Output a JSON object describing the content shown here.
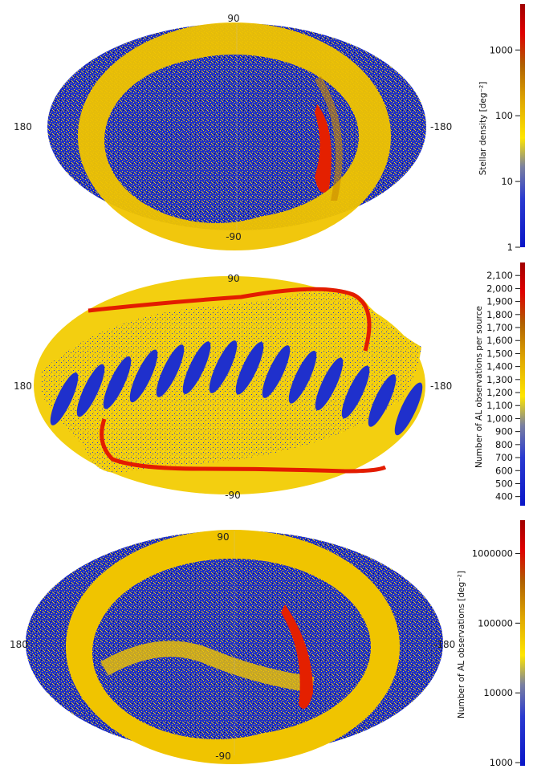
{
  "chart_data": [
    {
      "type": "heatmap",
      "projection": "mollweide",
      "lat_labels": {
        "top": "90",
        "bottom": "-90"
      },
      "lon_labels": {
        "left": "180",
        "right": "-180"
      },
      "colorbar": {
        "label": "Stellar density [deg⁻²]",
        "scale": "log",
        "range": [
          1,
          5000
        ],
        "ticks": [
          "1000",
          "100",
          "10",
          "1"
        ],
        "tick_values": [
          1000,
          100,
          10,
          1
        ],
        "colors": [
          "#0a16c8",
          "#7a80a0",
          "#ffe600",
          "#e0a800",
          "#b06000",
          "#e00000",
          "#a00000"
        ]
      },
      "features": {
        "background": "blue/yellow speckle",
        "ring": "yellow galactic-plane band",
        "hotspot": "red galactic centre"
      }
    },
    {
      "type": "heatmap",
      "projection": "mollweide",
      "lat_labels": {
        "top": "90",
        "bottom": "-90"
      },
      "lon_labels": {
        "left": "180",
        "right": "-180"
      },
      "colorbar": {
        "label": "Number of AL observations per source",
        "scale": "linear",
        "range": [
          330,
          2200
        ],
        "ticks": [
          "2,100",
          "2,000",
          "1,900",
          "1,800",
          "1,700",
          "1,600",
          "1,500",
          "1,400",
          "1,300",
          "1,200",
          "1,100",
          "1,000",
          "900",
          "800",
          "700",
          "600",
          "500",
          "400"
        ],
        "tick_values": [
          2100,
          2000,
          1900,
          1800,
          1700,
          1600,
          1500,
          1400,
          1300,
          1200,
          1100,
          1000,
          900,
          800,
          700,
          600,
          500,
          400
        ],
        "colors": [
          "#0a16c8",
          "#7a80a0",
          "#ffe600",
          "#e0a800",
          "#b06000",
          "#e00000",
          "#a00000"
        ]
      },
      "features": {
        "background": "yellow",
        "ring": "blue lens-shaped scan pattern along the ecliptic",
        "hotspot": "red edges of the scan band"
      }
    },
    {
      "type": "heatmap",
      "projection": "mollweide",
      "lat_labels": {
        "top": "90",
        "bottom": "-90"
      },
      "lon_labels": {
        "left": "180",
        "right": "-180"
      },
      "colorbar": {
        "label": "Number of AL observations [deg⁻²]",
        "scale": "log",
        "range": [
          900,
          3000000
        ],
        "ticks": [
          "1000000",
          "100000",
          "10000",
          "1000"
        ],
        "tick_values": [
          1000000,
          100000,
          10000,
          1000
        ],
        "colors": [
          "#0a16c8",
          "#7a80a0",
          "#ffe600",
          "#e0a800",
          "#b06000",
          "#e00000",
          "#a00000"
        ]
      },
      "features": {
        "background": "blue/yellow speckle",
        "ring": "yellow galactic-plane band",
        "hotspot": "red galactic centre"
      }
    }
  ]
}
